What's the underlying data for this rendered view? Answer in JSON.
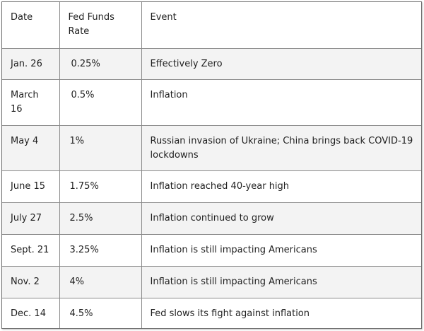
{
  "table": {
    "headers": {
      "date": "Date",
      "rate": "Fed Funds Rate",
      "event": "Event"
    },
    "rows": [
      {
        "date": "Jan. 26",
        "rate": "0.25%",
        "event": "Effectively Zero"
      },
      {
        "date": "March 16",
        "rate": "0.5%",
        "event": "Inflation"
      },
      {
        "date": "May 4",
        "rate": "1%",
        "event": "Russian invasion of Ukraine; China brings back COVID-19 lockdowns"
      },
      {
        "date": "June 15",
        "rate": "1.75%",
        "event": "Inflation reached 40-year high"
      },
      {
        "date": "July 27",
        "rate": "2.5%",
        "event": "Inflation continued to grow"
      },
      {
        "date": "Sept. 21",
        "rate": "3.25%",
        "event": "Inflation is still impacting Americans"
      },
      {
        "date": "Nov. 2",
        "rate": "4%",
        "event": "Inflation is still impacting Americans"
      },
      {
        "date": "Dec. 14",
        "rate": "4.5%",
        "event": "Fed slows its fight against inflation"
      }
    ]
  },
  "colors": {
    "border": "#8a8a8a",
    "shaded_row": "#f3f3f3",
    "text": "#1f1f1f"
  }
}
